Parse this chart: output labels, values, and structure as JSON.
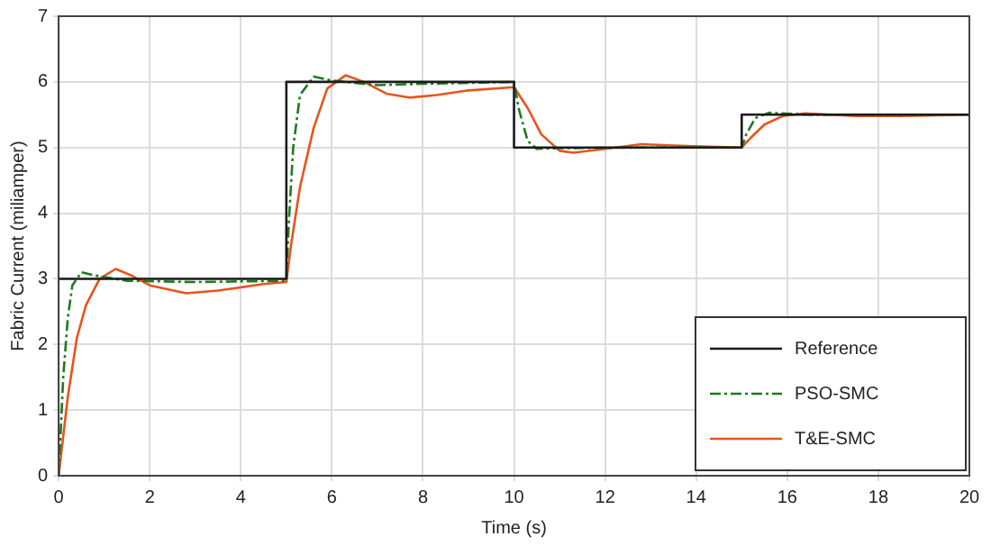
{
  "chart_data": {
    "type": "line",
    "xlabel": "Time (s)",
    "ylabel": "Fabric Current (miliamper)",
    "xlim": [
      0,
      20
    ],
    "xticks": [
      0,
      2,
      4,
      6,
      8,
      10,
      12,
      14,
      16,
      18,
      20
    ],
    "ylim": [
      0,
      7
    ],
    "yticks": [
      0,
      1,
      2,
      3,
      4,
      5,
      6,
      7
    ],
    "grid": true,
    "legend": "bottom right",
    "marker": "none",
    "series": [
      {
        "name": "Reference",
        "color": "#1a1a1a",
        "line_style": "solid",
        "x": [
          0,
          5,
          5,
          10,
          10,
          15,
          15,
          20
        ],
        "values": [
          3,
          3,
          6,
          6,
          5,
          5,
          5.5,
          5.5
        ]
      },
      {
        "name": "PSO-SMC",
        "color": "#1f7a1f",
        "line_style": "dashed",
        "x": [
          0,
          0.1,
          0.2,
          0.3,
          0.5,
          0.8,
          1.5,
          3,
          5,
          5.05,
          5.15,
          5.3,
          5.6,
          6,
          7,
          8,
          10,
          10.1,
          10.3,
          10.5,
          11,
          13,
          15,
          15.1,
          15.3,
          15.6,
          16.5,
          20
        ],
        "values": [
          0,
          1.5,
          2.4,
          2.9,
          3.1,
          3.05,
          2.97,
          2.95,
          2.97,
          3.8,
          5.0,
          5.8,
          6.08,
          6.02,
          5.95,
          5.97,
          6.0,
          5.6,
          5.1,
          4.98,
          4.99,
          5.0,
          5.0,
          5.2,
          5.45,
          5.53,
          5.5,
          5.5
        ]
      },
      {
        "name": "T&E-SMC",
        "color": "#e8541c",
        "line_style": "solid",
        "x": [
          0,
          0.2,
          0.4,
          0.6,
          0.9,
          1.25,
          1.6,
          2,
          2.8,
          3.5,
          4.5,
          5,
          5.1,
          5.3,
          5.6,
          5.9,
          6.3,
          6.7,
          7.2,
          7.7,
          8.3,
          9,
          10,
          10.3,
          10.6,
          11,
          11.3,
          12,
          12.8,
          13.5,
          15,
          15.2,
          15.5,
          15.9,
          16.4,
          17.5,
          18.5,
          20
        ],
        "values": [
          0,
          1.2,
          2.1,
          2.6,
          3.0,
          3.15,
          3.05,
          2.9,
          2.78,
          2.82,
          2.92,
          2.95,
          3.5,
          4.4,
          5.3,
          5.9,
          6.1,
          6.0,
          5.82,
          5.76,
          5.8,
          5.87,
          5.92,
          5.6,
          5.2,
          4.95,
          4.92,
          4.98,
          5.05,
          5.03,
          5.0,
          5.15,
          5.35,
          5.48,
          5.52,
          5.48,
          5.48,
          5.5
        ]
      }
    ]
  }
}
